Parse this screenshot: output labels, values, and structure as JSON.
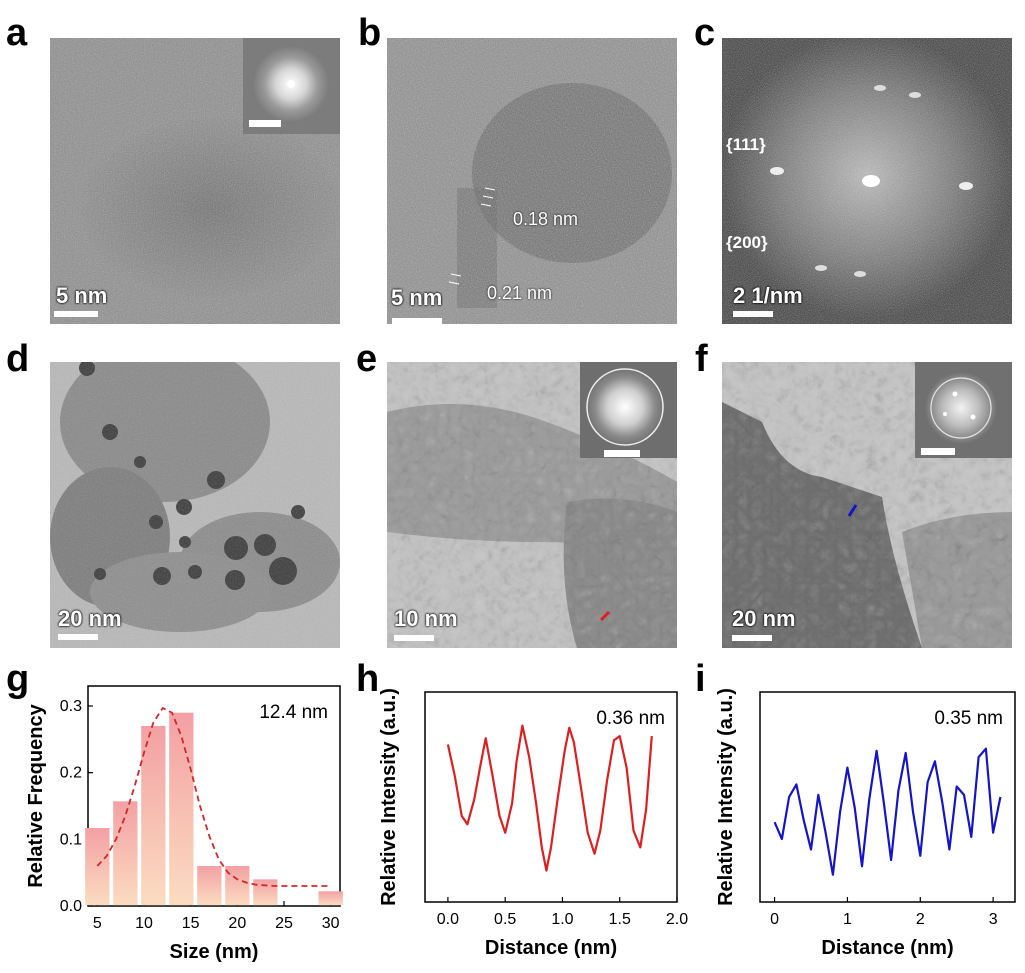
{
  "panel_labels": [
    "a",
    "b",
    "c",
    "d",
    "e",
    "f",
    "g",
    "h",
    "i"
  ],
  "micrographs": {
    "a": {
      "scale": "5 nm"
    },
    "b": {
      "scale": "5 nm",
      "measure_1": "0.18 nm",
      "measure_2": "0.21 nm"
    },
    "c": {
      "scale": "2 1/nm",
      "plane_1": "{111}",
      "plane_2": "{200}"
    },
    "d": {
      "scale": "20 nm"
    },
    "e": {
      "scale": "10 nm"
    },
    "f": {
      "scale": "20 nm"
    }
  },
  "chart_data": [
    {
      "type": "bar",
      "panel": "g",
      "annotation": "12.4 nm",
      "xlabel": "Size (nm)",
      "ylabel": "Relative Frequency",
      "categories": [
        5,
        8,
        11,
        14,
        17,
        20,
        23,
        30
      ],
      "values": [
        0.117,
        0.157,
        0.27,
        0.29,
        0.06,
        0.06,
        0.04,
        0.022
      ],
      "xlim": [
        4,
        31
      ],
      "ylim": [
        0,
        0.33
      ],
      "xticks": [
        5,
        10,
        15,
        20,
        25,
        30
      ],
      "yticks": [
        0.0,
        0.1,
        0.2,
        0.3
      ],
      "ytick_labels": [
        "0.0",
        "0.1",
        "0.2",
        "0.3"
      ],
      "fit": {
        "style": "dashed",
        "x": [
          5,
          6,
          7,
          8,
          9,
          10,
          11,
          12,
          13,
          14,
          15,
          16,
          17,
          18,
          19,
          20,
          21,
          22,
          24,
          26,
          28,
          30
        ],
        "y": [
          0.06,
          0.075,
          0.1,
          0.135,
          0.18,
          0.23,
          0.275,
          0.297,
          0.29,
          0.255,
          0.205,
          0.15,
          0.105,
          0.07,
          0.05,
          0.04,
          0.035,
          0.032,
          0.03,
          0.03,
          0.03,
          0.03
        ]
      },
      "colors": {
        "bar_top": "#f3a0a4",
        "bar_bottom": "#fbdcc0",
        "fit": "#d62728"
      }
    },
    {
      "type": "line",
      "panel": "h",
      "annotation": "0.36 nm",
      "xlabel": "Distance (nm)",
      "ylabel": "Relative Intensity (a.u.)",
      "xlim": [
        -0.2,
        2.0
      ],
      "ylim": [
        0,
        1
      ],
      "xticks": [
        0.0,
        0.5,
        1.0,
        1.5,
        2.0
      ],
      "xtick_labels": [
        "0.0",
        "0.5",
        "1.0",
        "1.5",
        "2.0"
      ],
      "series": [
        {
          "color": "#dd1f1f",
          "x": [
            0.0,
            0.06,
            0.12,
            0.17,
            0.23,
            0.28,
            0.33,
            0.39,
            0.45,
            0.5,
            0.56,
            0.6,
            0.65,
            0.71,
            0.77,
            0.82,
            0.86,
            0.9,
            0.96,
            1.02,
            1.06,
            1.1,
            1.16,
            1.22,
            1.28,
            1.33,
            1.39,
            1.45,
            1.5,
            1.56,
            1.62,
            1.68,
            1.73,
            1.78
          ],
          "y": [
            0.75,
            0.6,
            0.41,
            0.37,
            0.49,
            0.64,
            0.78,
            0.6,
            0.41,
            0.33,
            0.47,
            0.67,
            0.84,
            0.69,
            0.47,
            0.26,
            0.15,
            0.26,
            0.5,
            0.72,
            0.83,
            0.76,
            0.55,
            0.33,
            0.23,
            0.34,
            0.58,
            0.77,
            0.79,
            0.64,
            0.34,
            0.26,
            0.44,
            0.79
          ]
        }
      ]
    },
    {
      "type": "line",
      "panel": "i",
      "annotation": "0.35 nm",
      "xlabel": "Distance (nm)",
      "ylabel": "Relative Intensity (a.u.)",
      "xlim": [
        -0.2,
        3.3
      ],
      "ylim": [
        0,
        1
      ],
      "xticks": [
        0,
        1,
        2,
        3
      ],
      "xtick_labels": [
        "0",
        "1",
        "2",
        "3"
      ],
      "series": [
        {
          "color": "#1414c8",
          "x": [
            0.0,
            0.1,
            0.2,
            0.3,
            0.4,
            0.5,
            0.6,
            0.7,
            0.8,
            0.9,
            1.0,
            1.1,
            1.2,
            1.3,
            1.4,
            1.5,
            1.6,
            1.7,
            1.8,
            1.9,
            2.0,
            2.1,
            2.2,
            2.3,
            2.4,
            2.5,
            2.6,
            2.7,
            2.8,
            2.9,
            3.0,
            3.1
          ],
          "y": [
            0.38,
            0.3,
            0.5,
            0.56,
            0.39,
            0.25,
            0.51,
            0.33,
            0.13,
            0.43,
            0.64,
            0.45,
            0.17,
            0.49,
            0.72,
            0.47,
            0.2,
            0.53,
            0.71,
            0.43,
            0.22,
            0.57,
            0.67,
            0.48,
            0.25,
            0.55,
            0.51,
            0.31,
            0.69,
            0.73,
            0.33,
            0.5
          ]
        }
      ]
    }
  ],
  "colors": {
    "micro_dark": "#3c3c3c",
    "micro_mid": "#7a7a7a",
    "micro_light": "#a8a8a8"
  }
}
